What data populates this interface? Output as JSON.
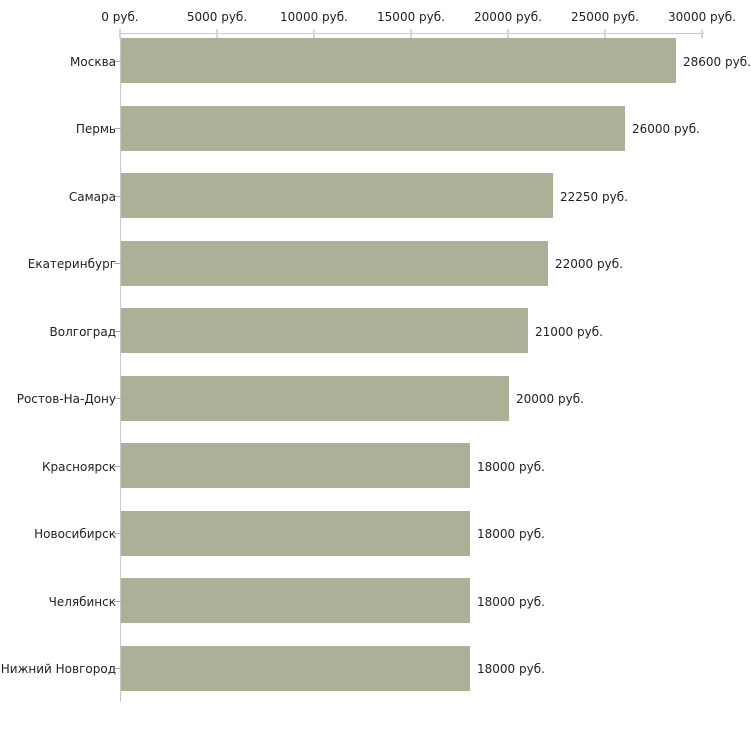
{
  "chart_data": {
    "type": "bar",
    "orientation": "horizontal",
    "title": "",
    "xlabel": "",
    "ylabel": "",
    "grid": false,
    "legend": false,
    "categories": [
      "Москва",
      "Пермь",
      "Самара",
      "Екатеринбург",
      "Волгоград",
      "Ростов-На-Дону",
      "Красноярск",
      "Новосибирск",
      "Челябинск",
      "Нижний Новгород"
    ],
    "values": [
      28600,
      26000,
      22250,
      22000,
      21000,
      20000,
      18000,
      18000,
      18000,
      18000
    ],
    "value_labels": [
      "28600 руб.",
      "26000 руб.",
      "22250 руб.",
      "22000 руб.",
      "21000 руб.",
      "20000 руб.",
      "18000 руб.",
      "18000 руб.",
      "18000 руб.",
      "18000 руб."
    ],
    "x_axis": {
      "position": "top",
      "range": [
        0,
        30000
      ],
      "ticks": [
        0,
        5000,
        10000,
        15000,
        20000,
        25000,
        30000
      ],
      "tick_labels": [
        "0 руб.",
        "5000 руб.",
        "10000 руб.",
        "15000 руб.",
        "20000 руб.",
        "25000 руб.",
        "30000 руб."
      ]
    }
  },
  "colors": {
    "bar": "#abb096",
    "axis_line": "#c9c9c9",
    "x_tick": "#d6d9c5",
    "y_tick": "#aaaaa0",
    "text": "#1f1f1f",
    "background": "#ffffff"
  }
}
